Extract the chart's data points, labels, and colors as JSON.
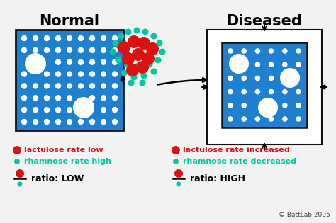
{
  "title_normal": "Normal",
  "title_diseased": "Diseased",
  "bg_color": "#f2f2f2",
  "box_blue": "#2080d0",
  "box_border": "#111111",
  "red_dot": "#dd1111",
  "teal_dot": "#00c8a0",
  "white_dot": "#ffffff",
  "legend_left_text1": "lactulose rate low",
  "legend_left_text2": "rhamnose rate high",
  "legend_right_text1": "lactulose rate increased",
  "legend_right_text2": "rhamnose rate decreased",
  "ratio_left": "ratio: LOW",
  "ratio_right": "ratio: HIGH",
  "copyright": "© BattLab 2005"
}
